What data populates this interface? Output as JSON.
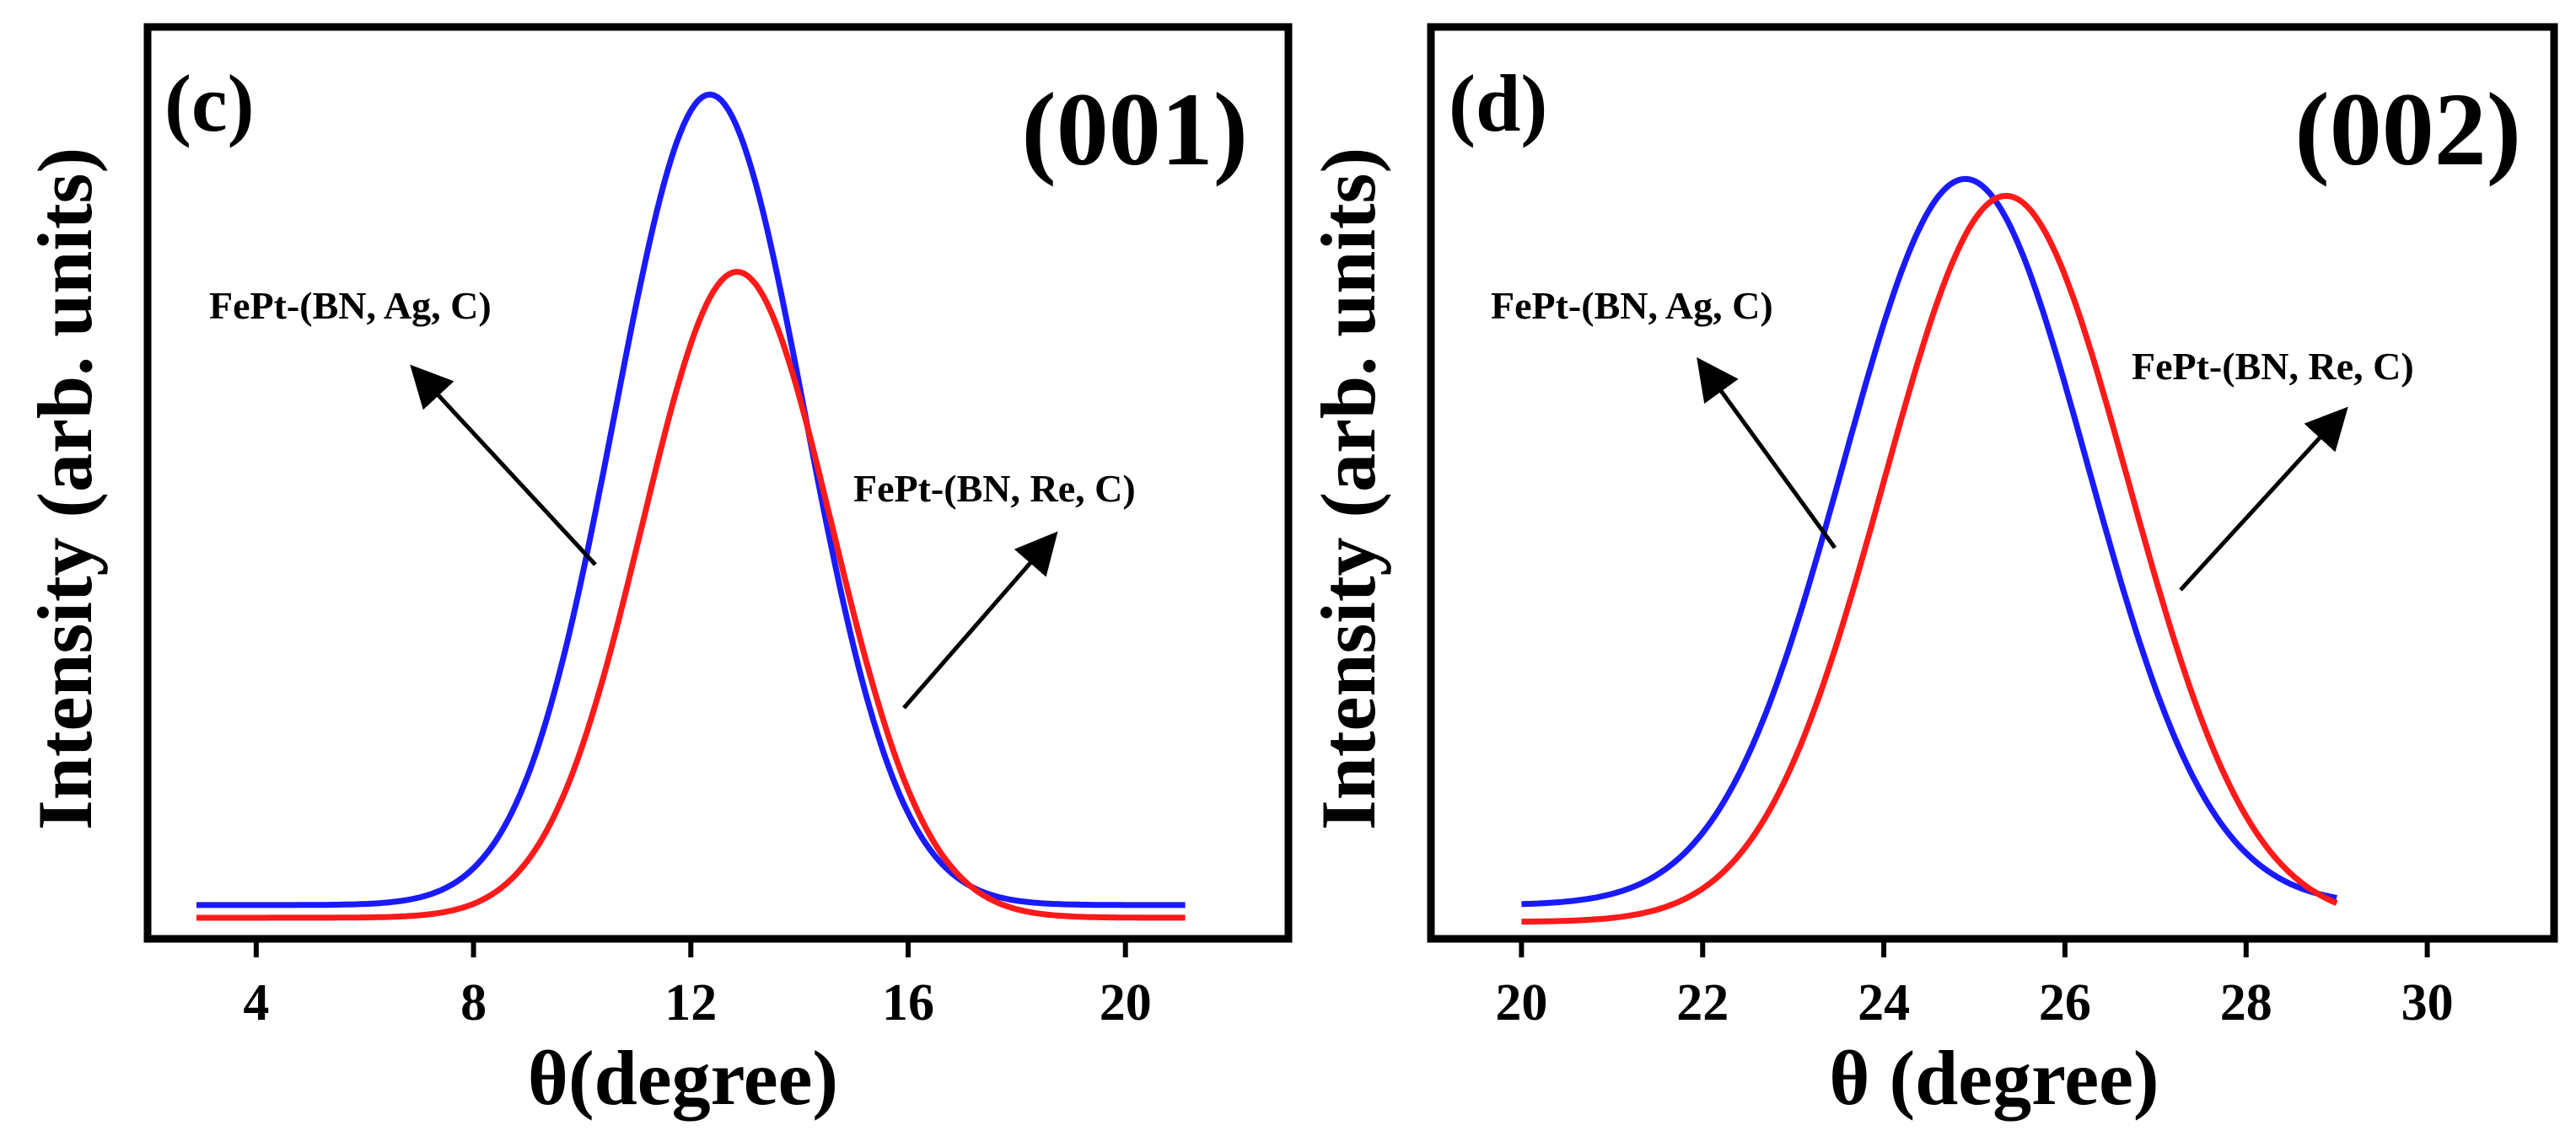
{
  "chart_data": [
    {
      "type": "line",
      "panel_label": "(c)",
      "plane_label": "(001)",
      "xlabel": "θ(degree)",
      "ylabel": "Intensity (arb. units)",
      "xlim": [
        2,
        23
      ],
      "ylim": [
        0,
        1.08
      ],
      "xticks": [
        4,
        8,
        12,
        16,
        20
      ],
      "xtick_labels": [
        "4",
        "8",
        "12",
        "16",
        "20"
      ],
      "y_ticks_labeled": false,
      "series": [
        {
          "name": "FePt-(BN, Ag, C)",
          "color": "#1a1aff",
          "peak_x": 12.35,
          "peak_y": 1.0,
          "sigma": 1.75,
          "baseline": 0.04,
          "x_range": [
            2.9,
            21.1
          ]
        },
        {
          "name": "FePt-(BN, Re, C)",
          "color": "#ff1a1a",
          "peak_x": 12.85,
          "peak_y": 0.79,
          "sigma": 1.75,
          "baseline": 0.025,
          "x_range": [
            2.9,
            21.1
          ]
        }
      ],
      "annotations": [
        {
          "text": "FePt-(BN, Ag, C)",
          "series": "FePt-(BN, Ag, C)"
        },
        {
          "text": "FePt-(BN, Re, C)",
          "series": "FePt-(BN, Re, C)"
        }
      ]
    },
    {
      "type": "line",
      "panel_label": "(d)",
      "plane_label": "(002)",
      "xlabel": "θ (degree)",
      "ylabel": "Intensity (arb. units)",
      "xlim": [
        19,
        31.4
      ],
      "ylim": [
        0,
        1.08
      ],
      "xticks": [
        20,
        22,
        24,
        26,
        28,
        30
      ],
      "xtick_labels": [
        "20",
        "22",
        "24",
        "26",
        "28",
        "30"
      ],
      "y_ticks_labeled": false,
      "series": [
        {
          "name": "FePt-(BN, Ag, C)",
          "color": "#1a1aff",
          "peak_x": 24.9,
          "peak_y": 0.9,
          "sigma": 1.35,
          "baseline": 0.04,
          "x_range": [
            20.0,
            29.0
          ]
        },
        {
          "name": "FePt-(BN, Re, C)",
          "color": "#ff1a1a",
          "peak_x": 25.35,
          "peak_y": 0.88,
          "sigma": 1.35,
          "baseline": 0.02,
          "x_range": [
            20.0,
            29.0
          ]
        }
      ],
      "annotations": [
        {
          "text": "FePt-(BN, Ag, C)",
          "series": "FePt-(BN, Ag, C)"
        },
        {
          "text": "FePt-(BN, Re, C)",
          "series": "FePt-(BN, Re, C)"
        }
      ]
    }
  ]
}
